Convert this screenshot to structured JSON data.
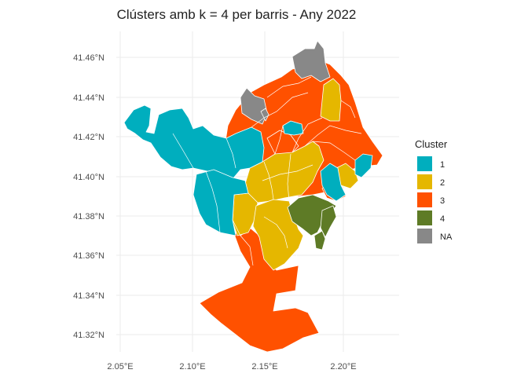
{
  "title": "Clústers amb k = 4 per barris - Any 2022",
  "x_ticks": [
    {
      "value": 2.05,
      "label": "2.05°E"
    },
    {
      "value": 2.1,
      "label": "2.10°E"
    },
    {
      "value": 2.15,
      "label": "2.15°E"
    },
    {
      "value": 2.2,
      "label": "2.20°E"
    }
  ],
  "y_ticks": [
    {
      "value": 41.32,
      "label": "41.32°N"
    },
    {
      "value": 41.34,
      "label": "41.34°N"
    },
    {
      "value": 41.36,
      "label": "41.36°N"
    },
    {
      "value": 41.38,
      "label": "41.38°N"
    },
    {
      "value": 41.4,
      "label": "41.40°N"
    },
    {
      "value": 41.42,
      "label": "41.42°N"
    },
    {
      "value": 41.44,
      "label": "41.44°N"
    },
    {
      "value": 41.46,
      "label": "41.46°N"
    }
  ],
  "legend": {
    "title": "Cluster",
    "items": [
      {
        "key": "1",
        "label": "1",
        "color": "#00AEBE"
      },
      {
        "key": "2",
        "label": "2",
        "color": "#E5B700"
      },
      {
        "key": "3",
        "label": "3",
        "color": "#FF5100"
      },
      {
        "key": "4",
        "label": "4",
        "color": "#5E7B26"
      },
      {
        "key": "NA",
        "label": "NA",
        "color": "#888888"
      }
    ]
  },
  "colors": {
    "grid": "#ebebeb",
    "border": "#ffffff"
  }
}
